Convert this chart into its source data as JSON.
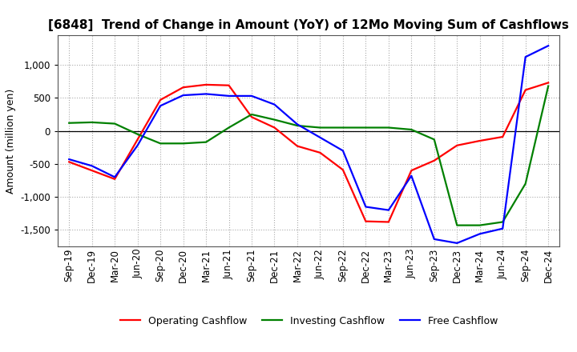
{
  "title": "[6848]  Trend of Change in Amount (YoY) of 12Mo Moving Sum of Cashflows",
  "ylabel": "Amount (million yen)",
  "title_fontsize": 11,
  "label_fontsize": 9,
  "tick_fontsize": 8.5,
  "background_color": "#ffffff",
  "grid_color": "#aaaaaa",
  "x_labels": [
    "Sep-19",
    "Dec-19",
    "Mar-20",
    "Jun-20",
    "Sep-20",
    "Dec-20",
    "Mar-21",
    "Jun-21",
    "Sep-21",
    "Dec-21",
    "Mar-22",
    "Jun-22",
    "Sep-22",
    "Dec-22",
    "Mar-23",
    "Jun-23",
    "Sep-23",
    "Dec-23",
    "Mar-24",
    "Jun-24",
    "Sep-24",
    "Dec-24"
  ],
  "operating": [
    -470,
    -600,
    -730,
    -130,
    470,
    660,
    700,
    690,
    210,
    50,
    -230,
    -330,
    -590,
    -1370,
    -1380,
    -600,
    -450,
    -220,
    -150,
    -90,
    620,
    730
  ],
  "investing": [
    120,
    130,
    110,
    -50,
    -190,
    -190,
    -170,
    50,
    250,
    170,
    80,
    50,
    50,
    50,
    50,
    20,
    -130,
    -1430,
    -1430,
    -1380,
    -800,
    680
  ],
  "free": [
    -430,
    -530,
    -700,
    -220,
    380,
    540,
    560,
    530,
    530,
    400,
    100,
    -100,
    -300,
    -1150,
    -1200,
    -680,
    -1640,
    -1700,
    -1560,
    -1480,
    1120,
    1290
  ],
  "ylim": [
    -1750,
    1450
  ],
  "yticks": [
    -1500,
    -1000,
    -500,
    0,
    500,
    1000
  ],
  "operating_color": "#ff0000",
  "investing_color": "#008000",
  "free_color": "#0000ff",
  "line_width": 1.6
}
